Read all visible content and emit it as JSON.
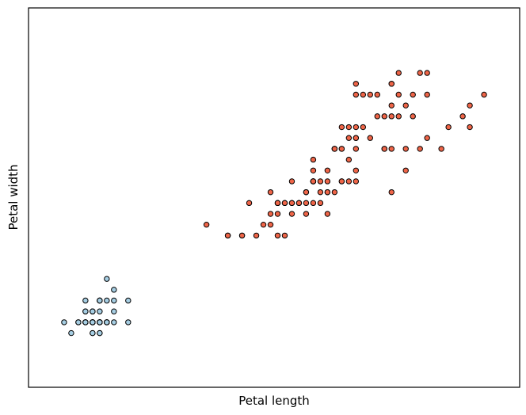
{
  "chart_data": {
    "type": "scatter",
    "title": "",
    "xlabel": "Petal length",
    "ylabel": "Petal width",
    "xlim": [
      0.5,
      7.4
    ],
    "ylim": [
      -0.4,
      3.1
    ],
    "grid": false,
    "xticks": [],
    "yticks": [],
    "series": [
      {
        "color": "#a6cee3",
        "points": [
          [
            1.4,
            0.2
          ],
          [
            1.4,
            0.2
          ],
          [
            1.3,
            0.2
          ],
          [
            1.5,
            0.2
          ],
          [
            1.4,
            0.2
          ],
          [
            1.7,
            0.4
          ],
          [
            1.4,
            0.3
          ],
          [
            1.5,
            0.2
          ],
          [
            1.4,
            0.2
          ],
          [
            1.5,
            0.1
          ],
          [
            1.5,
            0.2
          ],
          [
            1.6,
            0.2
          ],
          [
            1.4,
            0.1
          ],
          [
            1.1,
            0.1
          ],
          [
            1.2,
            0.2
          ],
          [
            1.5,
            0.4
          ],
          [
            1.3,
            0.4
          ],
          [
            1.4,
            0.3
          ],
          [
            1.7,
            0.3
          ],
          [
            1.5,
            0.3
          ],
          [
            1.7,
            0.2
          ],
          [
            1.5,
            0.4
          ],
          [
            1.0,
            0.2
          ],
          [
            1.7,
            0.5
          ],
          [
            1.9,
            0.2
          ],
          [
            1.6,
            0.2
          ],
          [
            1.6,
            0.4
          ],
          [
            1.5,
            0.2
          ],
          [
            1.4,
            0.2
          ],
          [
            1.6,
            0.2
          ],
          [
            1.6,
            0.2
          ],
          [
            1.5,
            0.4
          ],
          [
            1.5,
            0.1
          ],
          [
            1.4,
            0.2
          ],
          [
            1.5,
            0.2
          ],
          [
            1.2,
            0.2
          ],
          [
            1.3,
            0.2
          ],
          [
            1.4,
            0.1
          ],
          [
            1.3,
            0.2
          ],
          [
            1.5,
            0.2
          ],
          [
            1.3,
            0.3
          ],
          [
            1.3,
            0.3
          ],
          [
            1.3,
            0.2
          ],
          [
            1.6,
            0.6
          ],
          [
            1.9,
            0.4
          ],
          [
            1.4,
            0.3
          ],
          [
            1.6,
            0.2
          ],
          [
            1.4,
            0.2
          ],
          [
            1.5,
            0.2
          ],
          [
            1.4,
            0.2
          ]
        ]
      },
      {
        "color": "#ef6548",
        "points": [
          [
            4.7,
            1.4
          ],
          [
            4.5,
            1.5
          ],
          [
            4.9,
            1.5
          ],
          [
            4.0,
            1.3
          ],
          [
            4.6,
            1.5
          ],
          [
            4.5,
            1.3
          ],
          [
            4.7,
            1.6
          ],
          [
            3.3,
            1.0
          ],
          [
            4.6,
            1.3
          ],
          [
            3.9,
            1.4
          ],
          [
            3.5,
            1.0
          ],
          [
            4.2,
            1.5
          ],
          [
            4.0,
            1.0
          ],
          [
            4.7,
            1.4
          ],
          [
            3.6,
            1.3
          ],
          [
            4.4,
            1.4
          ],
          [
            4.5,
            1.5
          ],
          [
            4.1,
            1.0
          ],
          [
            4.5,
            1.5
          ],
          [
            3.9,
            1.1
          ],
          [
            4.8,
            1.8
          ],
          [
            4.0,
            1.3
          ],
          [
            4.9,
            1.5
          ],
          [
            4.7,
            1.2
          ],
          [
            4.3,
            1.3
          ],
          [
            4.4,
            1.4
          ],
          [
            4.8,
            1.4
          ],
          [
            5.0,
            1.7
          ],
          [
            4.5,
            1.5
          ],
          [
            3.5,
            1.0
          ],
          [
            3.8,
            1.1
          ],
          [
            3.7,
            1.0
          ],
          [
            3.9,
            1.2
          ],
          [
            5.1,
            1.6
          ],
          [
            4.5,
            1.5
          ],
          [
            4.5,
            1.6
          ],
          [
            4.7,
            1.5
          ],
          [
            4.4,
            1.3
          ],
          [
            4.1,
            1.3
          ],
          [
            4.0,
            1.3
          ],
          [
            4.4,
            1.2
          ],
          [
            4.6,
            1.4
          ],
          [
            4.0,
            1.2
          ],
          [
            3.3,
            1.0
          ],
          [
            4.2,
            1.3
          ],
          [
            4.2,
            1.2
          ],
          [
            4.2,
            1.3
          ],
          [
            4.3,
            1.3
          ],
          [
            3.0,
            1.1
          ],
          [
            4.1,
            1.3
          ],
          [
            6.0,
            2.5
          ],
          [
            5.1,
            1.9
          ],
          [
            5.9,
            2.1
          ],
          [
            5.6,
            1.8
          ],
          [
            5.8,
            2.2
          ],
          [
            6.6,
            2.1
          ],
          [
            4.5,
            1.7
          ],
          [
            6.3,
            1.8
          ],
          [
            5.8,
            1.8
          ],
          [
            6.1,
            2.5
          ],
          [
            5.1,
            2.0
          ],
          [
            5.3,
            1.9
          ],
          [
            5.5,
            2.1
          ],
          [
            5.0,
            2.0
          ],
          [
            5.1,
            2.4
          ],
          [
            5.3,
            2.3
          ],
          [
            5.5,
            1.8
          ],
          [
            6.7,
            2.2
          ],
          [
            6.9,
            2.3
          ],
          [
            5.0,
            1.5
          ],
          [
            5.7,
            2.3
          ],
          [
            4.9,
            2.0
          ],
          [
            6.7,
            2.0
          ],
          [
            4.9,
            1.8
          ],
          [
            5.7,
            2.1
          ],
          [
            6.0,
            1.8
          ],
          [
            4.8,
            1.8
          ],
          [
            4.9,
            1.8
          ],
          [
            5.6,
            2.1
          ],
          [
            5.8,
            1.6
          ],
          [
            6.1,
            1.9
          ],
          [
            6.4,
            2.0
          ],
          [
            5.6,
            2.2
          ],
          [
            5.1,
            1.5
          ],
          [
            5.6,
            1.4
          ],
          [
            6.1,
            2.3
          ],
          [
            5.6,
            2.4
          ],
          [
            5.5,
            1.8
          ],
          [
            4.8,
            1.8
          ],
          [
            5.4,
            2.1
          ],
          [
            5.6,
            2.4
          ],
          [
            5.1,
            2.3
          ],
          [
            5.1,
            1.9
          ],
          [
            5.9,
            2.3
          ],
          [
            5.7,
            2.5
          ],
          [
            5.2,
            2.3
          ],
          [
            5.0,
            1.9
          ],
          [
            5.2,
            2.0
          ],
          [
            5.4,
            2.3
          ],
          [
            5.1,
            1.8
          ]
        ]
      }
    ]
  }
}
